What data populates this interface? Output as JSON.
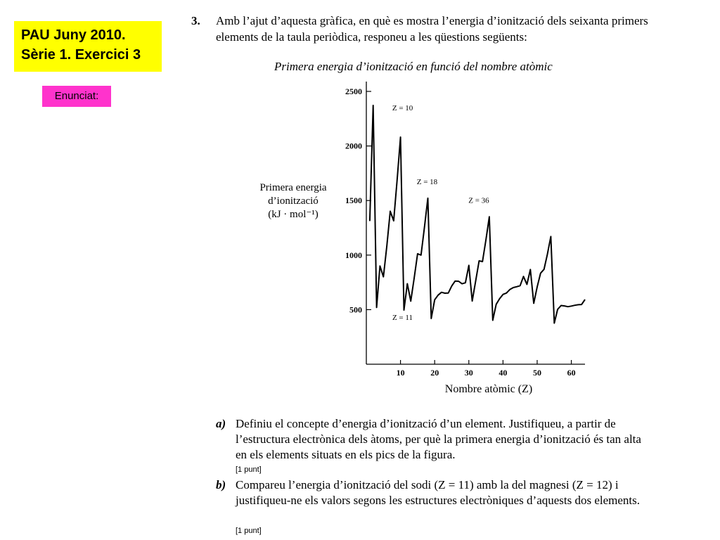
{
  "slide": {
    "title_line1": "PAU Juny 2010.",
    "title_line2": "Sèrie 1. Exercici 3",
    "badge": "Enunciat:"
  },
  "question": {
    "number": "3.",
    "intro": "Amb l’ajut d’aquesta gràfica, en què es mostra l’energia d’ionització dels seixanta primers elements de la taula periòdica, responeu a les qüestions següents:"
  },
  "chart_data": {
    "type": "line",
    "title": "Primera energia d’ionització en funció del nombre atòmic",
    "ylabel_lines": [
      "Primera energia",
      "d’ionització",
      "(kJ · mol⁻¹)"
    ],
    "xlabel": "Nombre atòmic (Z)",
    "xlim": [
      0,
      64
    ],
    "ylim": [
      0,
      2500
    ],
    "x_ticks": [
      10,
      20,
      30,
      40,
      50,
      60
    ],
    "y_ticks": [
      500,
      1000,
      1500,
      2000,
      2500
    ],
    "annotations": [
      {
        "text": "Z = 10",
        "x": 10,
        "y": 2081
      },
      {
        "text": "Z = 18",
        "x": 18,
        "y": 1521
      },
      {
        "text": "Z = 36",
        "x": 36,
        "y": 1351
      },
      {
        "text": "Z = 11",
        "x": 11,
        "y": 496
      }
    ],
    "series": [
      {
        "x": [
          1,
          2,
          3,
          4,
          5,
          6,
          7,
          8,
          9,
          10,
          11,
          12,
          13,
          14,
          15,
          16,
          17,
          18,
          19,
          20,
          21,
          22,
          23,
          24,
          25,
          26,
          27,
          28,
          29,
          30,
          31,
          32,
          33,
          34,
          35,
          36,
          37,
          38,
          39,
          40,
          41,
          42,
          43,
          44,
          45,
          46,
          47,
          48,
          49,
          50,
          51,
          52,
          53,
          54,
          55,
          56,
          57,
          58,
          59,
          60,
          61,
          62,
          63,
          64
        ],
        "values": [
          1312,
          2372,
          520,
          900,
          801,
          1086,
          1402,
          1314,
          1681,
          2081,
          496,
          738,
          578,
          787,
          1012,
          1000,
          1251,
          1521,
          419,
          590,
          633,
          659,
          651,
          653,
          717,
          762,
          760,
          737,
          746,
          906,
          579,
          762,
          947,
          941,
          1140,
          1351,
          403,
          549,
          600,
          640,
          652,
          684,
          702,
          710,
          720,
          804,
          731,
          868,
          558,
          709,
          834,
          869,
          1008,
          1170,
          376,
          503,
          538,
          534,
          527,
          533,
          540,
          545,
          547,
          593
        ]
      }
    ]
  },
  "parts": [
    {
      "label": "a",
      "text": "Definiu el concepte d’energia d’ionització d’un element. Justifiqueu, a partir de l’estructura electrònica dels àtoms, per què la primera energia d’ionització és tan alta en els elements situats en els pics de la figura.",
      "points": "[1 punt]"
    },
    {
      "label": "b",
      "text": "Compareu l’energia d’ionització del sodi (Z = 11) amb la del magnesi (Z = 12) i justifiqueu-ne els valors segons les estructures electròniques d’aquests dos elements.",
      "points": "[1 punt]"
    }
  ]
}
